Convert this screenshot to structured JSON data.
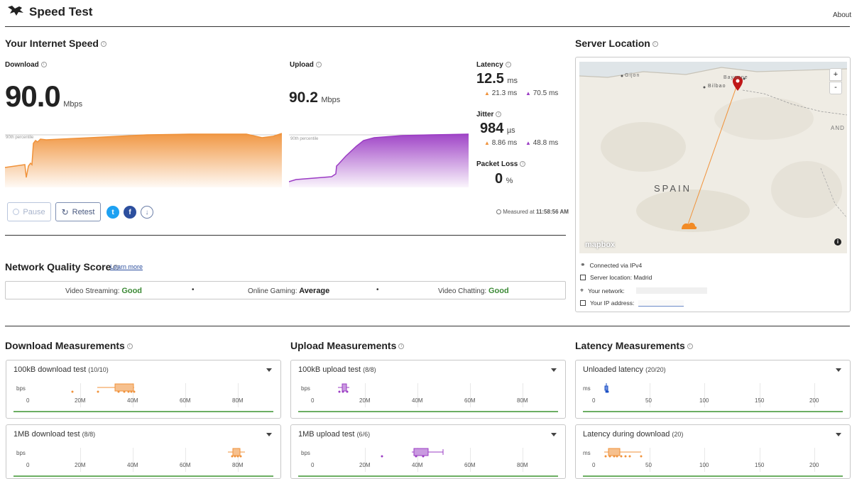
{
  "header": {
    "title": "Speed Test",
    "about": "About"
  },
  "speed": {
    "section_title": "Your Internet Speed",
    "download": {
      "label": "Download",
      "value": "90.0",
      "unit": "Mbps",
      "percentile": "90th percentile"
    },
    "upload": {
      "label": "Upload",
      "value": "90.2",
      "unit": "Mbps",
      "percentile": "90th percentile"
    },
    "latency": {
      "label": "Latency",
      "value": "12.5",
      "unit": "ms",
      "down": "21.3",
      "up": "70.5",
      "sub_unit": "ms"
    },
    "jitter": {
      "label": "Jitter",
      "value": "984",
      "unit": "µs",
      "down": "8.86",
      "up": "48.8",
      "sub_unit": "ms"
    },
    "packet_loss": {
      "label": "Packet Loss",
      "value": "0",
      "unit": "%"
    },
    "buttons": {
      "pause": "Pause",
      "retest": "Retest"
    },
    "measured": {
      "prefix": "Measured at",
      "time": "11:58:56 AM"
    }
  },
  "server": {
    "title": "Server Location",
    "map": {
      "country_label": "SPAIN",
      "cities": [
        "Gijon",
        "Bilbao",
        "Bayonne"
      ],
      "edge_label": "AND",
      "brand": "mapbox",
      "zoom_in": "+",
      "zoom_out": "-",
      "info": "i"
    },
    "connected": "Connected via IPv4",
    "location": "Server location: Madrid",
    "network_label": "Your network:",
    "ip_label": "Your IP address:"
  },
  "quality": {
    "title": "Network Quality Score",
    "learn_more": "Learn more",
    "items": [
      {
        "label": "Video Streaming:",
        "value": "Good"
      },
      {
        "label": "Online Gaming:",
        "value": "Average"
      },
      {
        "label": "Video Chatting:",
        "value": "Good"
      }
    ],
    "colors": {
      "good": "#3d8b37",
      "average": "#222222"
    }
  },
  "measurements": {
    "download": {
      "title": "Download Measurements",
      "cards": [
        {
          "name": "100kB download test",
          "count": "(10/10)",
          "unit": "bps",
          "ticks": [
            "0",
            "20M",
            "40M",
            "60M",
            "80M"
          ]
        },
        {
          "name": "1MB download test",
          "count": "(8/8)",
          "unit": "bps",
          "ticks": [
            "0",
            "20M",
            "40M",
            "60M",
            "80M"
          ]
        }
      ]
    },
    "upload": {
      "title": "Upload Measurements",
      "cards": [
        {
          "name": "100kB upload test",
          "count": "(8/8)",
          "unit": "bps",
          "ticks": [
            "0",
            "20M",
            "40M",
            "60M",
            "80M"
          ]
        },
        {
          "name": "1MB upload test",
          "count": "(6/6)",
          "unit": "bps",
          "ticks": [
            "0",
            "20M",
            "40M",
            "60M",
            "80M"
          ]
        }
      ]
    },
    "latency": {
      "title": "Latency Measurements",
      "cards": [
        {
          "name": "Unloaded latency",
          "count": "(20/20)",
          "unit": "ms",
          "ticks": [
            "0",
            "50",
            "100",
            "150",
            "200"
          ]
        },
        {
          "name": "Latency during download",
          "count": "(20)",
          "unit": "ms",
          "ticks": [
            "0",
            "50",
            "100",
            "150",
            "200"
          ]
        }
      ]
    }
  },
  "colors": {
    "download": "#f0923a",
    "upload": "#9b3cc4",
    "latency": "#1a4fc4",
    "twitter": "#1da1f2",
    "facebook": "#2d4f9e"
  }
}
